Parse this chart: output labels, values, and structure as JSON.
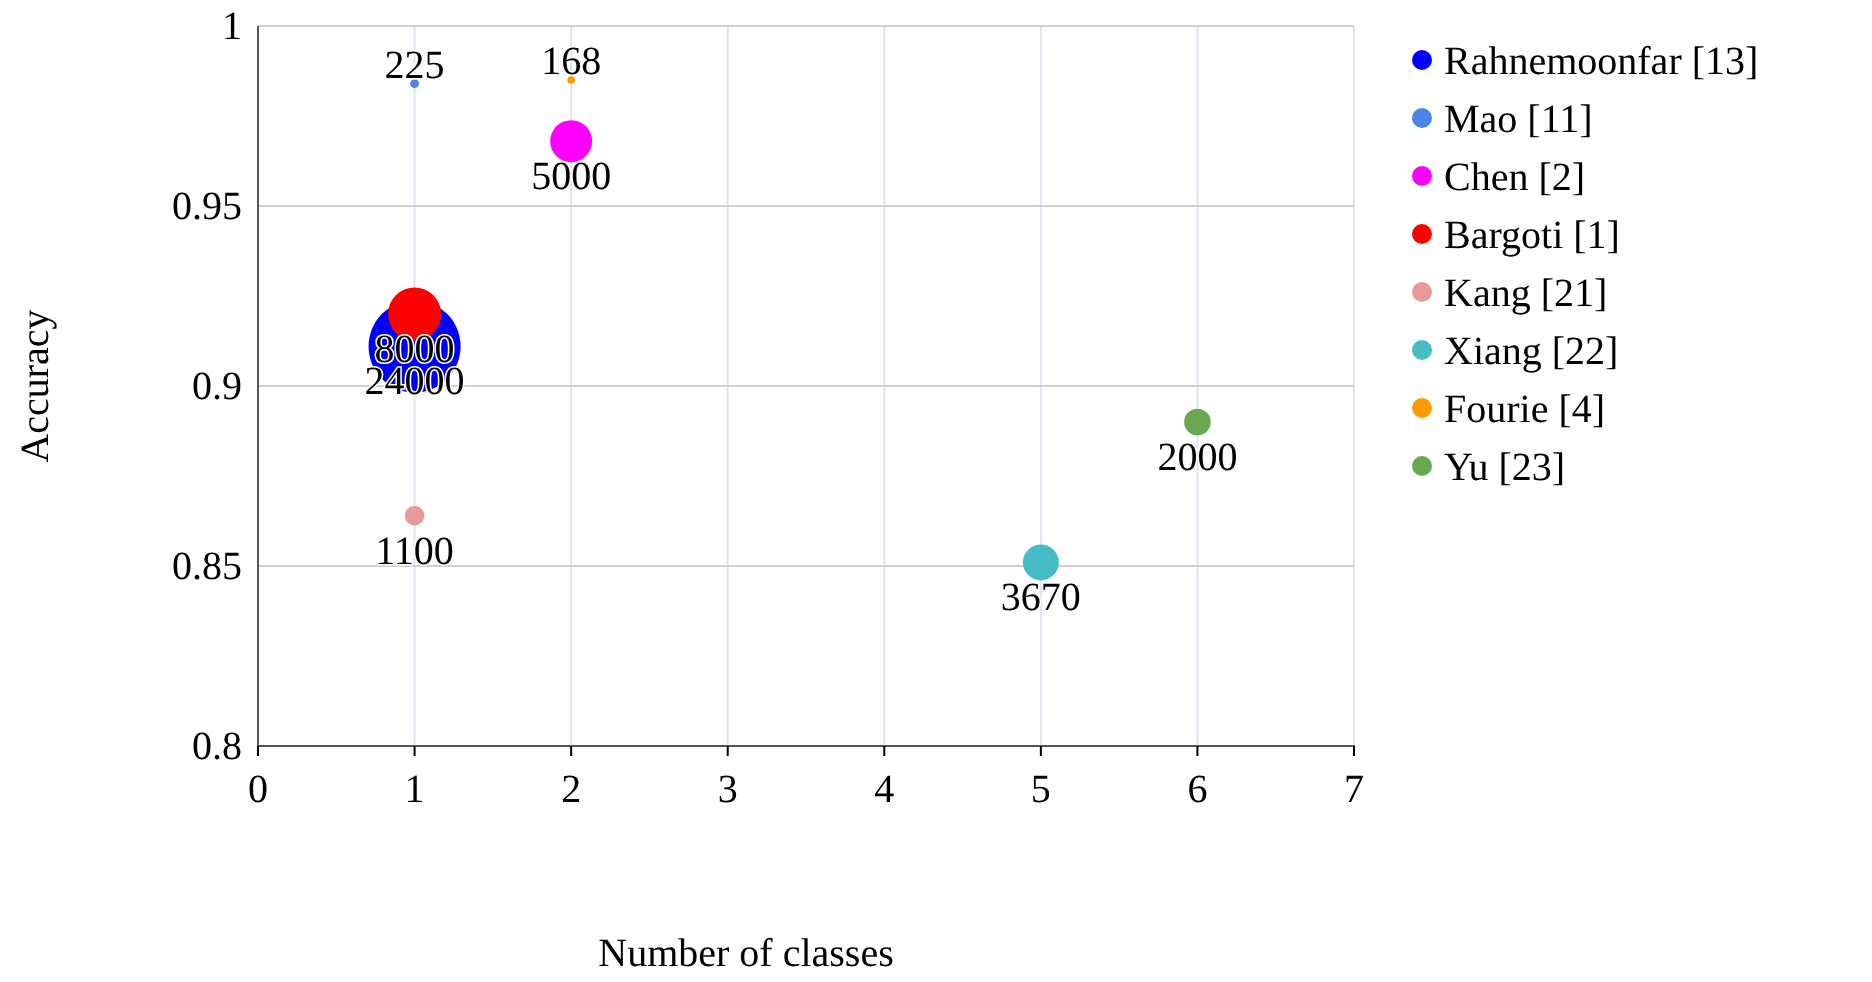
{
  "chart_data": {
    "type": "bubble",
    "xlabel": "Number of classes",
    "ylabel": "Accuracy",
    "xlim": [
      0,
      7
    ],
    "xticks": [
      0,
      1,
      2,
      3,
      4,
      5,
      6,
      7
    ],
    "ylim": [
      0.8,
      1
    ],
    "yticks": [
      0.8,
      0.85,
      0.9,
      0.95,
      1
    ],
    "grid": true,
    "legend": "right",
    "series": [
      {
        "name": "Rahnemoonfar [13]",
        "color": "#0000ff",
        "x": [
          1
        ],
        "values": [
          0.911
        ],
        "sizes": [
          1
        ]
      },
      {
        "name": "Mao [11]",
        "color": "#4a86e8",
        "x": [
          1
        ],
        "values": [
          0.984
        ],
        "sizes": [
          0.009375
        ]
      },
      {
        "name": "Chen [2]",
        "color": "#ff00ff",
        "x": [
          2
        ],
        "values": [
          0.968
        ],
        "sizes": [
          0.2083
        ]
      },
      {
        "name": "Bargoti [1]",
        "color": "#ff0000",
        "x": [
          1
        ],
        "values": [
          0.92
        ],
        "sizes": [
          0.3333
        ]
      },
      {
        "name": "Kang [21]",
        "color": "#e89a9a",
        "x": [
          1
        ],
        "values": [
          0.864
        ],
        "sizes": [
          0.04583
        ]
      },
      {
        "name": "Xiang [22]",
        "color": "#46bdc6",
        "x": [
          5
        ],
        "values": [
          0.851
        ],
        "sizes": [
          0.1529
        ]
      },
      {
        "name": "Fourie [4]",
        "color": "#ff9900",
        "x": [
          2
        ],
        "values": [
          0.985
        ],
        "sizes": [
          0.007
        ]
      },
      {
        "name": "Yu [23]",
        "color": "#6aa84f",
        "x": [
          6
        ],
        "values": [
          0.89
        ],
        "sizes": [
          0.08333
        ]
      }
    ],
    "annotations": [
      {
        "text": "24000",
        "x": 1,
        "y": 0.911
      },
      {
        "text": "225",
        "x": 1,
        "y": 0.984
      },
      {
        "text": "5000",
        "x": 2,
        "y": 0.968
      },
      {
        "text": "8000",
        "x": 1,
        "y": 0.92
      },
      {
        "text": "1100",
        "x": 1,
        "y": 0.864
      },
      {
        "text": "3670",
        "x": 5,
        "y": 0.851
      },
      {
        "text": "168",
        "x": 2,
        "y": 0.985
      },
      {
        "text": "2000",
        "x": 6,
        "y": 0.89
      }
    ]
  }
}
